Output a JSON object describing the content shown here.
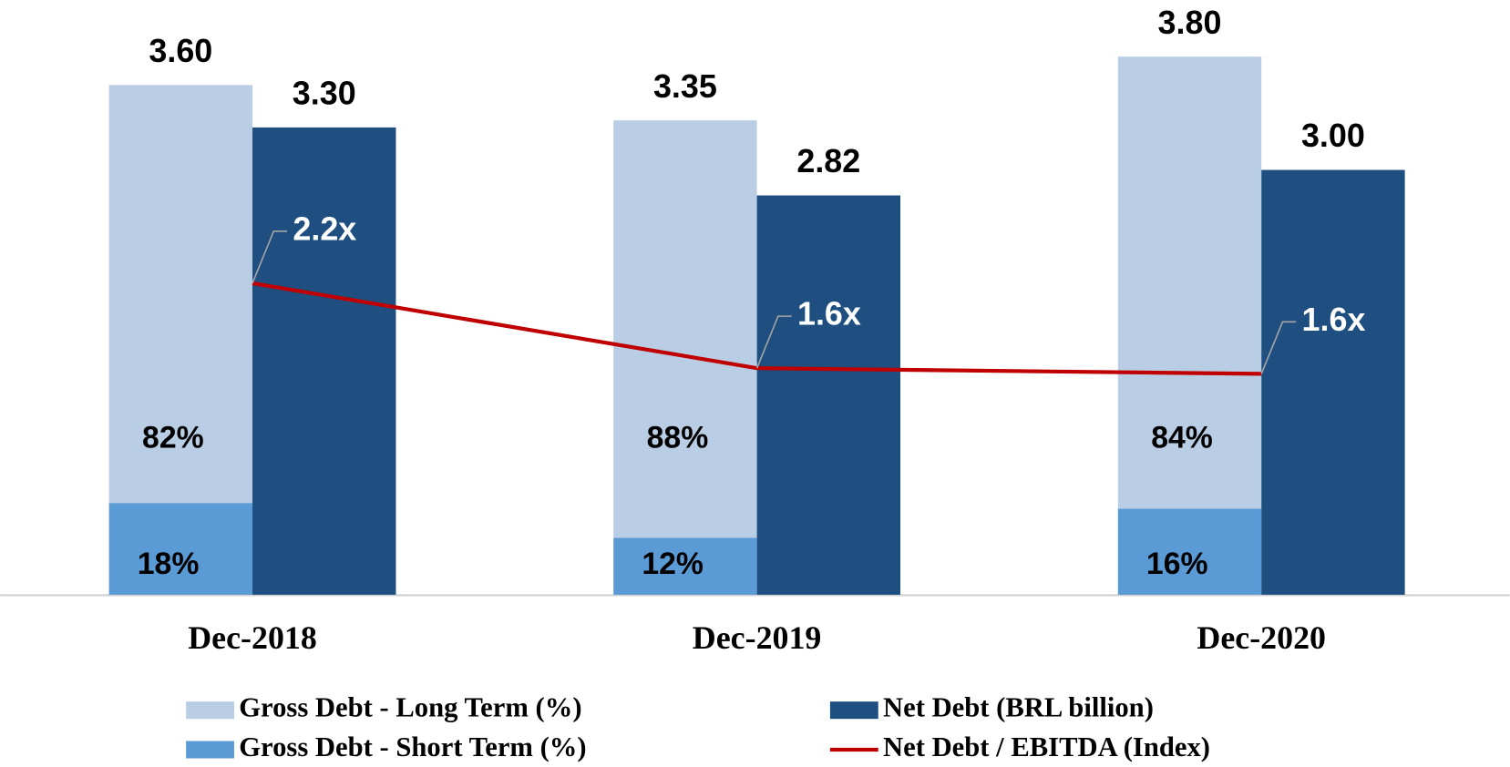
{
  "chart_data": {
    "type": "bar",
    "categories": [
      "Dec-2018",
      "Dec-2019",
      "Dec-2020"
    ],
    "gross_debt": {
      "values": [
        3.6,
        3.35,
        3.8
      ],
      "value_labels": [
        "3.60",
        "3.35",
        "3.80"
      ]
    },
    "series": [
      {
        "name": "Gross Debt - Long Term (%)",
        "color": "#b9cde5",
        "values": [
          82,
          88,
          84
        ],
        "value_labels": [
          "82%",
          "88%",
          "84%"
        ],
        "stack": "gross"
      },
      {
        "name": "Gross Debt - Short Term (%)",
        "color": "#5b9bd5",
        "values": [
          18,
          12,
          16
        ],
        "value_labels": [
          "18%",
          "12%",
          "16%"
        ],
        "stack": "gross"
      },
      {
        "name": "Net Debt (BRL billion)",
        "color": "#1f4e80",
        "values": [
          3.3,
          2.82,
          3.0
        ],
        "value_labels": [
          "3.30",
          "2.82",
          "3.00"
        ]
      },
      {
        "name": "Net Debt / EBITDA (Index)",
        "type": "line",
        "axis": "y2",
        "color": "#c00000",
        "values": [
          2.2,
          1.6,
          1.56
        ],
        "value_labels": [
          "2.2x",
          "1.6x",
          "1.6x"
        ]
      }
    ],
    "ylim": [
      0,
      4.2
    ],
    "y2lim": [
      0,
      4.2
    ]
  }
}
